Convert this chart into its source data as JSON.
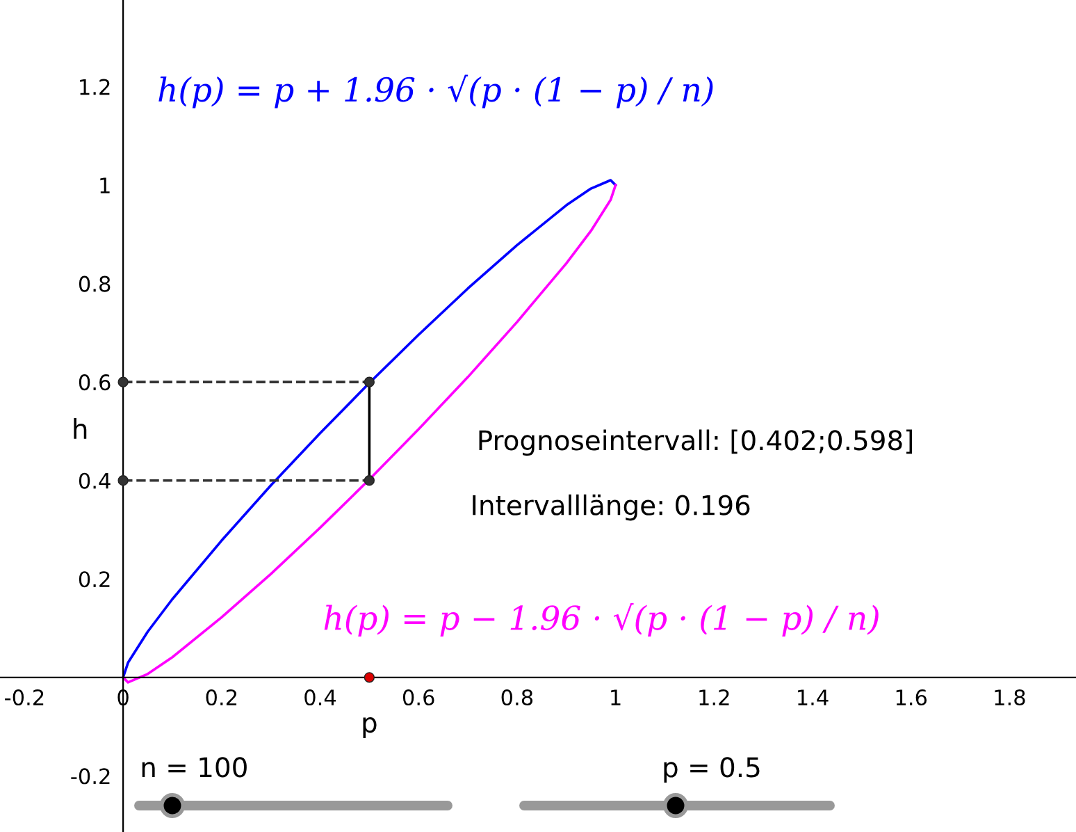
{
  "chart_data": {
    "type": "line",
    "xlabel": "p",
    "ylabel": "h",
    "xlim": [
      -0.25,
      1.935
    ],
    "ylim": [
      -0.314,
      1.376
    ],
    "xticks": [
      -0.2,
      0,
      0.2,
      0.4,
      0.6,
      0.8,
      1,
      1.2,
      1.4,
      1.6,
      1.8
    ],
    "yticks": [
      -0.2,
      0.2,
      0.4,
      0.6,
      0.8,
      1,
      1.2
    ],
    "grid": false,
    "legend": false,
    "series": [
      {
        "name": "h(p) = p + 1.96 · √(p · (1 − p) / n)",
        "color": "#0000ff",
        "x": [
          0,
          0.01,
          0.05,
          0.1,
          0.2,
          0.3,
          0.4,
          0.5,
          0.6,
          0.7,
          0.8,
          0.9,
          0.95,
          0.99,
          1
        ],
        "values": [
          0,
          0.03,
          0.093,
          0.159,
          0.278,
          0.39,
          0.496,
          0.598,
          0.696,
          0.79,
          0.878,
          0.959,
          0.993,
          1.01,
          1
        ]
      },
      {
        "name": "h(p) = p − 1.96 · √(p · (1 − p) / n)",
        "color": "#ff00ff",
        "x": [
          0,
          0.01,
          0.05,
          0.1,
          0.2,
          0.3,
          0.4,
          0.5,
          0.6,
          0.7,
          0.8,
          0.9,
          0.95,
          0.99,
          1
        ],
        "values": [
          0,
          -0.01,
          0.007,
          0.041,
          0.122,
          0.21,
          0.304,
          0.402,
          0.504,
          0.61,
          0.722,
          0.841,
          0.907,
          0.97,
          1
        ]
      },
      {
        "color": "#333333",
        "x": [
          0,
          0.5
        ],
        "values": [
          0.6,
          0.6
        ],
        "line_style": "dashed"
      },
      {
        "color": "#333333",
        "x": [
          0,
          0.5
        ],
        "values": [
          0.4,
          0.4
        ],
        "line_style": "dashed"
      },
      {
        "color": "#000000",
        "x": [
          0.5,
          0.5
        ],
        "values": [
          0.4,
          0.6
        ]
      },
      {
        "type": "scatter",
        "color": "#333333",
        "marker": "circle",
        "x": [
          0,
          0,
          0.5,
          0.5
        ],
        "values": [
          0.6,
          0.4,
          0.6,
          0.4
        ]
      },
      {
        "type": "scatter",
        "color": "#dd0000",
        "marker": "circle",
        "x": [
          0.5
        ],
        "values": [
          0
        ]
      }
    ],
    "annotations": [
      "Prognoseintervall: [0.402;0.598]",
      "Intervalllänge: 0.196",
      "n = 100",
      "p = 0.5"
    ]
  }
}
